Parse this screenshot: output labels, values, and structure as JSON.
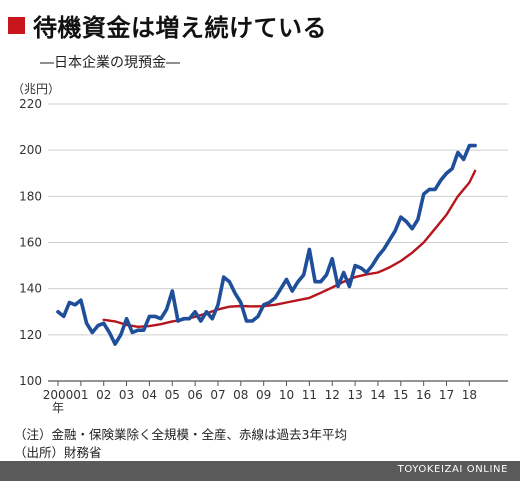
{
  "header": {
    "title": "待機資金は増え続けている",
    "subtitle": "―日本企業の現預金―",
    "unit": "（兆円）"
  },
  "notes": {
    "note1": "（注）金融・保険業除く全規模・全産、赤線は過去3年平均",
    "note2": "（出所）財務省"
  },
  "footer": {
    "credit": "TOYOKEIZAI ONLINE"
  },
  "colors": {
    "series_blue": "#1f4e9a",
    "series_red": "#b7151d",
    "title_square": "#c8161d",
    "footer_bg": "#5a5a5a"
  },
  "chart_data": {
    "type": "line",
    "ylabel": "（兆円）",
    "ylim": [
      100,
      220
    ],
    "yticks": [
      100,
      120,
      140,
      160,
      180,
      200,
      220
    ],
    "xlim": [
      2000.0,
      2018.75
    ],
    "xtick_values": [
      2000,
      2001,
      2002,
      2003,
      2004,
      2005,
      2006,
      2007,
      2008,
      2009,
      2010,
      2011,
      2012,
      2013,
      2014,
      2015,
      2016,
      2017,
      2018
    ],
    "xtick_labels": [
      "2000",
      "01",
      "02",
      "03",
      "04",
      "05",
      "06",
      "07",
      "08",
      "09",
      "10",
      "11",
      "12",
      "13",
      "14",
      "15",
      "16",
      "17",
      "18"
    ],
    "x_unit": "年",
    "grid": true,
    "series": [
      {
        "color": "#1f4e9a",
        "x": [
          2000.0,
          2000.25,
          2000.5,
          2000.75,
          2001.0,
          2001.25,
          2001.5,
          2001.75,
          2002.0,
          2002.25,
          2002.5,
          2002.75,
          2003.0,
          2003.25,
          2003.5,
          2003.75,
          2004.0,
          2004.25,
          2004.5,
          2004.75,
          2005.0,
          2005.25,
          2005.5,
          2005.75,
          2006.0,
          2006.25,
          2006.5,
          2006.75,
          2007.0,
          2007.25,
          2007.5,
          2007.75,
          2008.0,
          2008.25,
          2008.5,
          2008.75,
          2009.0,
          2009.25,
          2009.5,
          2009.75,
          2010.0,
          2010.25,
          2010.5,
          2010.75,
          2011.0,
          2011.25,
          2011.5,
          2011.75,
          2012.0,
          2012.25,
          2012.5,
          2012.75,
          2013.0,
          2013.25,
          2013.5,
          2013.75,
          2014.0,
          2014.25,
          2014.5,
          2014.75,
          2015.0,
          2015.25,
          2015.5,
          2015.75,
          2016.0,
          2016.25,
          2016.5,
          2016.75,
          2017.0,
          2017.25,
          2017.5,
          2017.75,
          2018.0,
          2018.25
        ],
        "values": [
          130,
          128,
          134,
          133,
          135,
          125,
          121,
          124,
          125,
          121,
          116,
          120,
          127,
          121,
          122,
          122,
          128,
          128,
          127,
          131,
          139,
          126,
          127,
          127,
          130,
          126,
          130,
          127,
          133,
          145,
          143,
          138,
          134,
          126,
          126,
          128,
          133,
          134,
          136,
          140,
          144,
          139,
          143,
          146,
          157,
          143,
          143,
          146,
          153,
          141,
          147,
          141,
          150,
          149,
          147,
          150,
          154,
          157,
          161,
          165,
          171,
          169,
          166,
          170,
          181,
          183,
          183,
          187,
          190,
          192,
          199,
          196,
          202,
          202
        ]
      },
      {
        "color": "#b7151d",
        "x": [
          2002.0,
          2002.5,
          2003.0,
          2003.5,
          2004.0,
          2004.5,
          2005.0,
          2005.5,
          2006.0,
          2006.5,
          2007.0,
          2007.5,
          2008.0,
          2008.5,
          2009.0,
          2009.5,
          2010.0,
          2010.5,
          2011.0,
          2011.5,
          2012.0,
          2012.5,
          2013.0,
          2013.5,
          2014.0,
          2014.5,
          2015.0,
          2015.5,
          2016.0,
          2016.5,
          2017.0,
          2017.5,
          2018.0,
          2018.25
        ],
        "values": [
          126.5,
          125.8,
          124.3,
          123.5,
          123.8,
          124.6,
          125.8,
          126.6,
          127.8,
          129.3,
          131.0,
          132.2,
          132.5,
          132.3,
          132.4,
          133.0,
          134.0,
          135.0,
          136.0,
          138.2,
          140.5,
          143.0,
          145.0,
          146.2,
          147.0,
          149.2,
          152.0,
          155.6,
          160.0,
          166.0,
          172.0,
          180.0,
          186.0,
          191.0
        ]
      }
    ]
  }
}
